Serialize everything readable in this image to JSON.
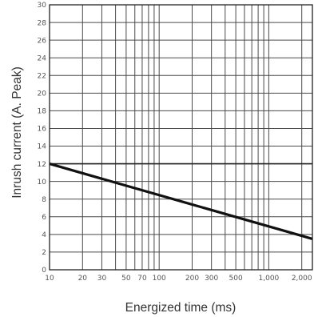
{
  "chart_data": {
    "type": "line",
    "title": "",
    "xlabel": "Energized time (ms)",
    "ylabel": "Inrush current (A. Peak)",
    "x_scale": "log",
    "xlim": [
      10,
      2500
    ],
    "ylim": [
      0,
      30
    ],
    "grid": true,
    "x_ticks": [
      10,
      20,
      30,
      50,
      70,
      100,
      200,
      300,
      500,
      1000,
      2000
    ],
    "x_tick_labels": [
      "10",
      "20",
      "30",
      "50",
      "70",
      "100",
      "200",
      "300",
      "500",
      "1,000",
      "2,000"
    ],
    "x_gridlines": [
      10,
      20,
      30,
      40,
      50,
      60,
      70,
      80,
      90,
      100,
      200,
      300,
      400,
      500,
      600,
      700,
      800,
      900,
      1000,
      2000
    ],
    "y_ticks": [
      0,
      2,
      4,
      6,
      8,
      10,
      12,
      14,
      16,
      18,
      20,
      22,
      24,
      26,
      28,
      30
    ],
    "y_tick_labels": [
      "0",
      "2",
      "4",
      "6",
      "8",
      "10",
      "12",
      "14",
      "16",
      "18",
      "20",
      "22",
      "24",
      "26",
      "28",
      "30"
    ],
    "reference_lines": [
      {
        "y": 12
      }
    ],
    "series": [
      {
        "x": [
          10,
          2500
        ],
        "y": [
          12,
          3.5
        ]
      }
    ]
  }
}
